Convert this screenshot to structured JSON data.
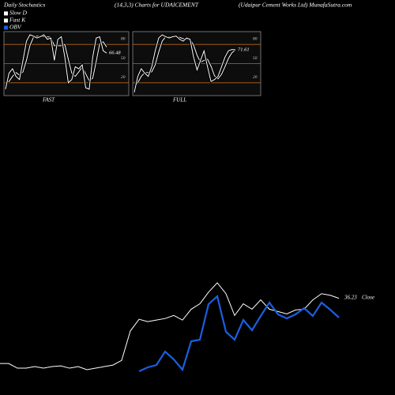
{
  "header": {
    "left": "Daily Stochastics",
    "center": "(14,3,3) Charts for UDAICEMENT",
    "right": "(Udaipur Cement Works Ltd) MunafaSutra.com"
  },
  "chart_data": [
    {
      "type": "stochastic",
      "x_label": "FAST",
      "ylim": [
        0,
        100
      ],
      "yticks": [
        20,
        50,
        80
      ],
      "grid": true,
      "grid_color": "#b8651b",
      "series": [
        {
          "name": "Slow D",
          "color": "#ffffff",
          "values": [
            20,
            22,
            30,
            36,
            32,
            37,
            55,
            78,
            91,
            93,
            92,
            92,
            92,
            91,
            78,
            78,
            78,
            80,
            57,
            35,
            30,
            37,
            45,
            34,
            23,
            27,
            53,
            81,
            84,
            76
          ]
        },
        {
          "name": "Fast K",
          "color": "#ffffff",
          "values": [
            10,
            35,
            42,
            30,
            25,
            55,
            85,
            95,
            93,
            90,
            92,
            95,
            88,
            90,
            55,
            88,
            92,
            60,
            20,
            25,
            45,
            42,
            48,
            12,
            10,
            60,
            90,
            92,
            70,
            66.48
          ]
        }
      ]
    },
    {
      "type": "stochastic",
      "x_label": "FULL",
      "ylim": [
        0,
        100
      ],
      "yticks": [
        20,
        50,
        80
      ],
      "grid": true,
      "grid_color": "#b8651b",
      "series": [
        {
          "color": "#ffffff",
          "values": [
            10,
            20,
            30,
            36,
            36,
            37,
            48,
            68,
            85,
            92,
            92,
            91,
            92,
            91,
            89,
            88,
            88,
            79,
            63,
            52,
            55,
            57,
            46,
            31,
            26,
            33,
            45,
            58,
            67,
            71
          ]
        },
        {
          "color": "#ffffff",
          "values": [
            5,
            30,
            42,
            35,
            30,
            45,
            70,
            90,
            95,
            92,
            90,
            92,
            93,
            88,
            85,
            90,
            88,
            60,
            40,
            55,
            70,
            45,
            22,
            25,
            30,
            45,
            60,
            70,
            72,
            71.61
          ]
        }
      ]
    },
    {
      "type": "price-obv",
      "close_label": "Close",
      "series": [
        {
          "color": "#ffffff",
          "values": [
            21.41,
            21.41,
            20.35,
            20.35,
            20.71,
            20.35,
            20.71,
            20.88,
            20.35,
            20.71,
            20,
            20.35,
            20.71,
            21.06,
            22.12,
            28.82,
            31.47,
            30.94,
            31.29,
            31.64,
            32.35,
            31.29,
            33.76,
            34.99,
            37.64,
            39.76,
            37.29,
            32.35,
            34.99,
            33.76,
            35.88,
            33.76,
            33.23,
            32.7,
            33.58,
            33.76,
            35.88,
            37.29,
            36.93,
            36.23
          ]
        },
        {
          "name": "OBV",
          "color": "#1a5fe0",
          "values": [
            null,
            null,
            null,
            null,
            null,
            null,
            null,
            null,
            null,
            null,
            null,
            null,
            null,
            null,
            null,
            null,
            0,
            5,
            8,
            25,
            15,
            2,
            38,
            40,
            85,
            95,
            50,
            40,
            65,
            52,
            70,
            87,
            72,
            67,
            72,
            80,
            70,
            87,
            78,
            68
          ]
        }
      ]
    }
  ]
}
